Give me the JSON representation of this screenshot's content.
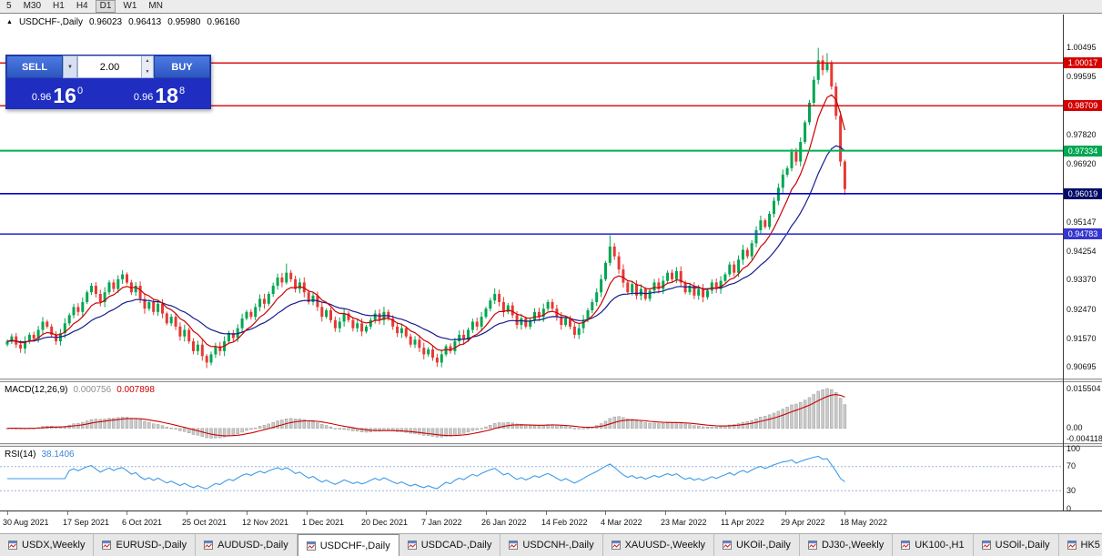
{
  "toolbar": {
    "periods": [
      {
        "label": "5",
        "active": false
      },
      {
        "label": "M30",
        "active": false
      },
      {
        "label": "H1",
        "active": false
      },
      {
        "label": "H4",
        "active": false
      },
      {
        "label": "D1",
        "active": true
      },
      {
        "label": "W1",
        "active": false
      },
      {
        "label": "MN",
        "active": false
      }
    ]
  },
  "chart_title": {
    "marker": "▲",
    "symbol": "USDCHF-,Daily",
    "open": "0.96023",
    "high": "0.96413",
    "low": "0.95980",
    "close": "0.96160"
  },
  "trade_panel": {
    "sell_label": "SELL",
    "buy_label": "BUY",
    "volume": "2.00",
    "icons": {
      "dropdown": "▼",
      "spin_up": "▲",
      "spin_down": "▼"
    },
    "sell_price": {
      "prefix": "0.96",
      "big": "16",
      "sup": "0"
    },
    "buy_price": {
      "prefix": "0.96",
      "big": "18",
      "sup": "8"
    }
  },
  "price_axis": {
    "ticks": [
      "1.00495",
      "0.99595",
      "0.97820",
      "0.96920",
      "0.95147",
      "0.94254",
      "0.93370",
      "0.92470",
      "0.91570",
      "0.90695"
    ],
    "badges": [
      {
        "text": "1.00017",
        "price": 1.00017,
        "color": "#d40000"
      },
      {
        "text": "0.98709",
        "price": 0.98709,
        "color": "#d40000"
      },
      {
        "text": "0.97334",
        "price": 0.97334,
        "color": "#00a651"
      },
      {
        "text": "0.96019",
        "price": 0.96019,
        "color": "#000a66"
      },
      {
        "text": "0.94783",
        "price": 0.94783,
        "color": "#3535cf"
      }
    ]
  },
  "macd_panel": {
    "name": "MACD(12,26,9)",
    "value_main": "0.000756",
    "value_signal": "0.007898",
    "axis": [
      {
        "text": "0.015504",
        "v": 0.015504
      },
      {
        "text": "0.00",
        "v": 0
      },
      {
        "text": "-0.004118",
        "v": -0.004118
      }
    ]
  },
  "rsi_panel": {
    "name": "RSI(14)",
    "value": "38.1406",
    "axis": [
      {
        "text": "100",
        "v": 100
      },
      {
        "text": "70",
        "v": 70
      },
      {
        "text": "30",
        "v": 30
      },
      {
        "text": "0",
        "v": 0
      }
    ]
  },
  "tabs": [
    {
      "label": "USDX,Weekly",
      "active": false
    },
    {
      "label": "EURUSD-,Daily",
      "active": false
    },
    {
      "label": "AUDUSD-,Daily",
      "active": false
    },
    {
      "label": "USDCHF-,Daily",
      "active": true
    },
    {
      "label": "USDCAD-,Daily",
      "active": false
    },
    {
      "label": "USDCNH-,Daily",
      "active": false
    },
    {
      "label": "XAUUSD-,Weekly",
      "active": false
    },
    {
      "label": "UKOil-,Daily",
      "active": false
    },
    {
      "label": "DJ30-,Weekly",
      "active": false
    },
    {
      "label": "UK100-,H1",
      "active": false
    },
    {
      "label": "USOil-,Daily",
      "active": false
    },
    {
      "label": "HK5",
      "active": false
    }
  ],
  "chart_data": {
    "type": "candlestick",
    "symbol": "USDCHF-",
    "timeframe": "Daily",
    "ohlc_current": {
      "open": 0.96023,
      "high": 0.96413,
      "low": 0.9598,
      "close": 0.9616
    },
    "ylim": [
      0.9036,
      1.015
    ],
    "x_labels": [
      "30 Aug 2021",
      "17 Sep 2021",
      "6 Oct 2021",
      "25 Oct 2021",
      "12 Nov 2021",
      "1 Dec 2021",
      "20 Dec 2021",
      "7 Jan 2022",
      "26 Jan 2022",
      "14 Feb 2022",
      "4 Mar 2022",
      "23 Mar 2022",
      "11 Apr 2022",
      "29 Apr 2022",
      "18 May 2022"
    ],
    "first_open": 0.914,
    "closes": [
      0.915,
      0.9165,
      0.914,
      0.9128,
      0.915,
      0.917,
      0.9158,
      0.9185,
      0.921,
      0.9195,
      0.917,
      0.915,
      0.9175,
      0.9205,
      0.923,
      0.9255,
      0.924,
      0.927,
      0.93,
      0.932,
      0.9295,
      0.927,
      0.93,
      0.933,
      0.931,
      0.934,
      0.9355,
      0.933,
      0.93,
      0.932,
      0.928,
      0.925,
      0.927,
      0.924,
      0.9265,
      0.9235,
      0.9205,
      0.9225,
      0.9195,
      0.9165,
      0.9185,
      0.915,
      0.912,
      0.914,
      0.9105,
      0.9085,
      0.911,
      0.9135,
      0.912,
      0.915,
      0.9175,
      0.916,
      0.919,
      0.922,
      0.924,
      0.9225,
      0.9255,
      0.928,
      0.9265,
      0.9295,
      0.932,
      0.9345,
      0.933,
      0.936,
      0.934,
      0.931,
      0.933,
      0.93,
      0.927,
      0.929,
      0.9255,
      0.9225,
      0.9245,
      0.9215,
      0.919,
      0.921,
      0.9235,
      0.9215,
      0.919,
      0.9205,
      0.918,
      0.9195,
      0.9215,
      0.9235,
      0.9215,
      0.924,
      0.922,
      0.9195,
      0.9175,
      0.919,
      0.9165,
      0.914,
      0.9155,
      0.913,
      0.911,
      0.9125,
      0.91,
      0.9085,
      0.911,
      0.9135,
      0.912,
      0.915,
      0.917,
      0.9155,
      0.9185,
      0.921,
      0.9195,
      0.9225,
      0.925,
      0.9275,
      0.9295,
      0.927,
      0.924,
      0.926,
      0.923,
      0.92,
      0.922,
      0.9195,
      0.9215,
      0.924,
      0.9225,
      0.925,
      0.927,
      0.925,
      0.9225,
      0.92,
      0.922,
      0.9195,
      0.917,
      0.919,
      0.9215,
      0.9245,
      0.927,
      0.93,
      0.934,
      0.939,
      0.944,
      0.941,
      0.937,
      0.933,
      0.93,
      0.9325,
      0.929,
      0.931,
      0.928,
      0.9305,
      0.933,
      0.931,
      0.9335,
      0.936,
      0.934,
      0.9365,
      0.933,
      0.93,
      0.932,
      0.929,
      0.931,
      0.9285,
      0.9305,
      0.933,
      0.931,
      0.9335,
      0.9355,
      0.9385,
      0.936,
      0.94,
      0.943,
      0.941,
      0.945,
      0.949,
      0.952,
      0.95,
      0.954,
      0.958,
      0.962,
      0.966,
      0.968,
      0.973,
      0.97,
      0.976,
      0.982,
      0.988,
      0.995,
      1.001,
      0.998,
      1.0,
      0.993,
      0.984,
      0.97,
      0.9616
    ],
    "wick_overrides": {
      "26": {
        "h": 0.9368
      },
      "45": {
        "l": 0.9068
      },
      "63": {
        "h": 0.9388
      },
      "97": {
        "l": 0.9072
      },
      "110": {
        "h": 0.9312
      },
      "136": {
        "h": 0.9475
      },
      "183": {
        "h": 1.0048
      },
      "185": {
        "h": 1.0032
      },
      "189": {
        "l": 0.9598
      }
    },
    "hlines": [
      {
        "price": 1.00017,
        "color": "#d40000",
        "width": 1.4
      },
      {
        "price": 0.98709,
        "color": "#d40000",
        "width": 1.4
      },
      {
        "price": 0.97334,
        "color": "#00b050",
        "width": 2
      },
      {
        "price": 0.96019,
        "color": "#0000cc",
        "width": 1.6
      },
      {
        "price": 0.94783,
        "color": "#3535cf",
        "width": 1.6
      }
    ],
    "ma_fast_period": 8,
    "ma_slow_period": 21,
    "macd": {
      "fast": 12,
      "slow": 26,
      "signal": 9,
      "ylim": [
        -0.0055,
        0.0175
      ]
    },
    "rsi": {
      "period": 14,
      "levels": [
        70,
        30
      ],
      "ylim": [
        0,
        100
      ]
    },
    "colors": {
      "up": "#00a651",
      "down": "#e53935",
      "ma_fast": "#cc0000",
      "ma_slow": "#141c8c",
      "macd_hist_fill": "#c9c9c9",
      "macd_hist_stroke": "#8f8f8f",
      "macd_signal": "#cc0000",
      "rsi_line": "#3d9be9",
      "rsi_levels": "#9fb4de"
    }
  }
}
